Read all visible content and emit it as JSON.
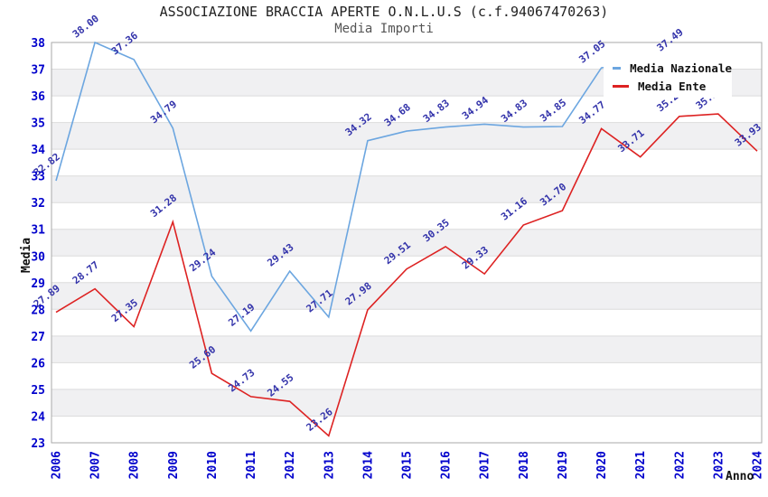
{
  "title": "ASSOCIAZIONE BRACCIA APERTE O.N.L.U.S (c.f.94067470263)",
  "subtitle": "Media Importi",
  "legend": {
    "position": "top-right",
    "items": [
      {
        "label": "Media Nazionale",
        "color": "#6CA6E0"
      },
      {
        "label": "Media Ente",
        "color": "#DD2222"
      }
    ]
  },
  "theme": {
    "band": "#F0F0F2",
    "grid": "#DCDCDC",
    "border": "#AAAAAA",
    "tick": "#0000CC",
    "value_label": "#3333AA",
    "title_color": "#222222",
    "subtitle_color": "#555555"
  },
  "chart_data": {
    "type": "line",
    "title": "ASSOCIAZIONE BRACCIA APERTE O.N.L.U.S (c.f.94067470263)",
    "subtitle": "Media Importi",
    "xlabel": "Anno",
    "ylabel": "Media",
    "categories": [
      2006,
      2007,
      2008,
      2009,
      2010,
      2011,
      2012,
      2013,
      2014,
      2015,
      2016,
      2017,
      2018,
      2019,
      2020,
      2021,
      2022,
      2023,
      2024
    ],
    "series": [
      {
        "name": "Media Nazionale",
        "color": "#6CA6E0",
        "values": [
          32.82,
          38.0,
          37.36,
          34.79,
          29.24,
          27.19,
          29.43,
          27.71,
          34.32,
          34.68,
          34.83,
          34.94,
          34.83,
          34.85,
          37.05,
          null,
          37.49,
          null,
          null
        ]
      },
      {
        "name": "Media Ente",
        "color": "#DD2222",
        "values": [
          27.89,
          28.77,
          27.35,
          31.28,
          25.6,
          24.73,
          24.55,
          23.26,
          27.98,
          29.51,
          30.35,
          29.33,
          31.16,
          31.7,
          34.77,
          33.71,
          35.23,
          35.32,
          33.93
        ]
      }
    ],
    "ylim": [
      23,
      38
    ],
    "ytick_step": 1,
    "grid": true,
    "alternating_bands": true,
    "legend_position": "top-right",
    "value_labels_shown": true,
    "note_hidden_points": "Media Nazionale 2021/2023/2024 not visible (legend overlaps / series ends at 2022)"
  }
}
